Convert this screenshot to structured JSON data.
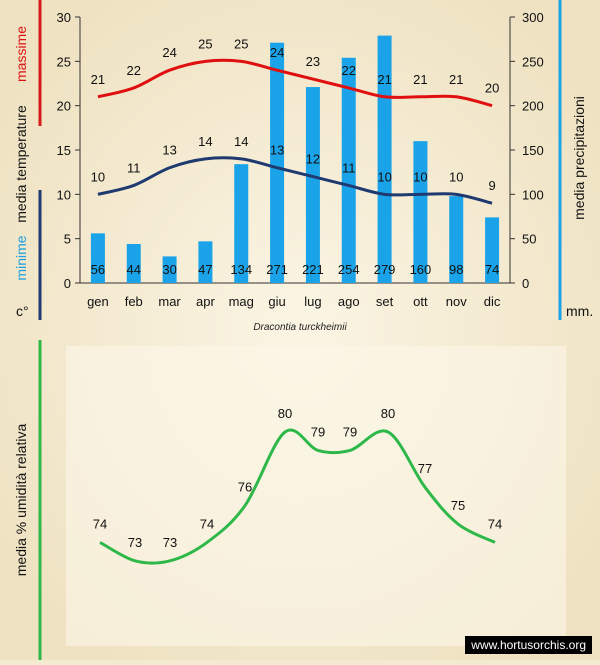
{
  "chart_data": [
    {
      "type": "bar+line",
      "title": "",
      "categories": [
        "gen",
        "feb",
        "mar",
        "apr",
        "mag",
        "giu",
        "lug",
        "ago",
        "set",
        "ott",
        "nov",
        "dic"
      ],
      "left_axis": {
        "ylim": [
          0,
          30
        ],
        "ticks": [
          "0",
          "5",
          "10",
          "15",
          "20",
          "25",
          "30"
        ],
        "unit_label": "c°",
        "labels": [
          {
            "text": "massime",
            "color": "#dd1111"
          },
          {
            "text": "media  temperature",
            "color": "#111111"
          },
          {
            "text": "minime",
            "color": "#1a9fe0"
          }
        ]
      },
      "right_axis": {
        "ylim": [
          0,
          300
        ],
        "ticks": [
          "0",
          "50",
          "100",
          "150",
          "200",
          "250",
          "300"
        ],
        "label": "media  precipitazioni",
        "unit_label": "mm."
      },
      "series": [
        {
          "name": "massime",
          "type": "line",
          "axis": "left",
          "color": "#e01010",
          "values": [
            21,
            22,
            24,
            25,
            25,
            24,
            23,
            22,
            21,
            21,
            21,
            20
          ]
        },
        {
          "name": "minime",
          "type": "line",
          "axis": "left",
          "color": "#1f3a70",
          "values": [
            10,
            11,
            13,
            14,
            14,
            13,
            12,
            11,
            10,
            10,
            10,
            9
          ]
        },
        {
          "name": "media precipitazioni",
          "type": "bar",
          "axis": "right",
          "color": "#1aa3e8",
          "values": [
            56,
            44,
            30,
            47,
            134,
            271,
            221,
            254,
            279,
            160,
            98,
            74
          ]
        }
      ]
    },
    {
      "type": "line",
      "title": "",
      "categories": [
        "gen",
        "feb",
        "mar",
        "apr",
        "mag",
        "giu",
        "lug",
        "ago",
        "set",
        "ott",
        "nov",
        "dic"
      ],
      "ylabel": "media %  umidità relativa",
      "series": [
        {
          "name": "media % umidità relativa",
          "color": "#2fb84a",
          "values": [
            74,
            73,
            73,
            74,
            76,
            80,
            79,
            79,
            80,
            77,
            75,
            74
          ]
        }
      ]
    }
  ],
  "caption": "Dracontia turckheimii",
  "watermark": "www.hortusorchis.org",
  "colors": {
    "background": "#f4ead2",
    "red_bar": "#d61a1a",
    "blue_bar": "#1aa3e8",
    "navy_bar": "#1f3a70",
    "green_bar": "#2fb84a"
  }
}
